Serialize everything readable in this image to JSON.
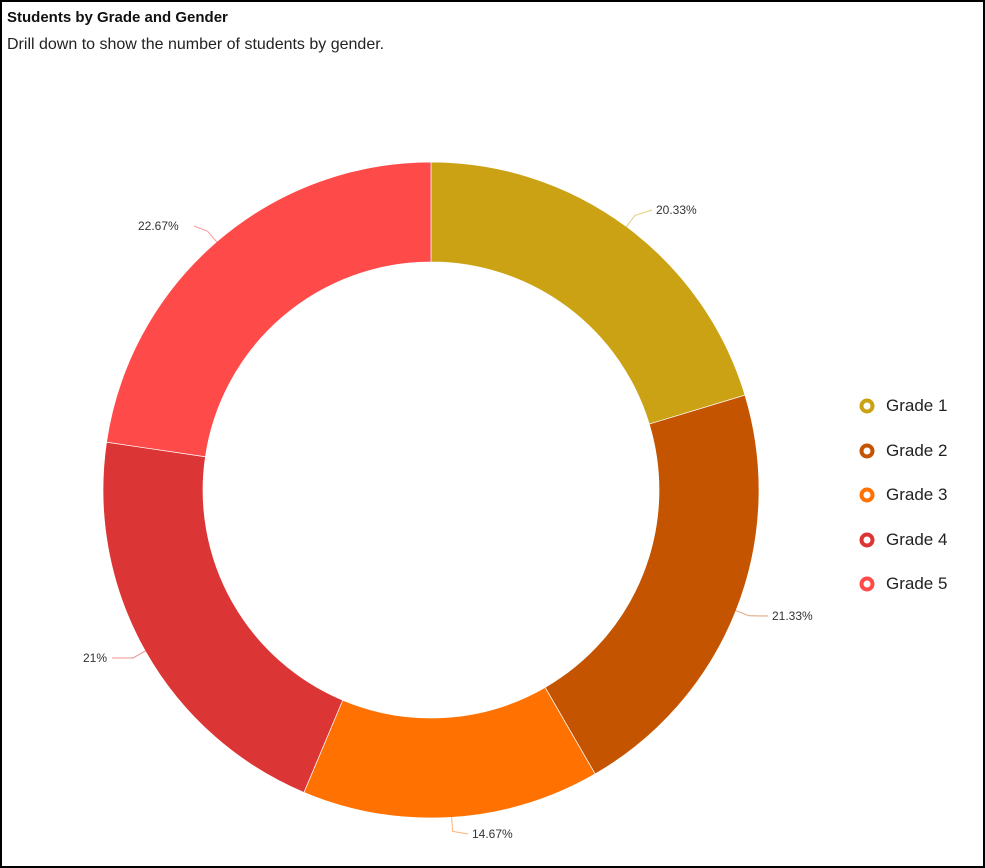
{
  "header": {
    "title": "Students by Grade and Gender",
    "subtitle": "Drill down to show the number of students by gender."
  },
  "legend": {
    "items": [
      {
        "label": "Grade 1",
        "color": "#CBA213"
      },
      {
        "label": "Grade 2",
        "color": "#C45400"
      },
      {
        "label": "Grade 3",
        "color": "#FF7100"
      },
      {
        "label": "Grade 4",
        "color": "#DC3535"
      },
      {
        "label": "Grade 5",
        "color": "#FF4A4A"
      }
    ]
  },
  "labels": {
    "grade1": "20.33%",
    "grade2": "21.33%",
    "grade3": "14.67%",
    "grade4": "21%",
    "grade5": "22.67%"
  },
  "chart_data": {
    "type": "pie",
    "subtype": "donut",
    "title": "Students by Grade and Gender",
    "subtitle": "Drill down to show the number of students by gender.",
    "categories": [
      "Grade 1",
      "Grade 2",
      "Grade 3",
      "Grade 4",
      "Grade 5"
    ],
    "values": [
      20.33,
      21.33,
      14.67,
      21,
      22.67
    ],
    "value_labels": [
      "20.33%",
      "21.33%",
      "14.67%",
      "21%",
      "22.67%"
    ],
    "colors": [
      "#CBA213",
      "#C45400",
      "#FF7100",
      "#DC3535",
      "#FF4A4A"
    ],
    "start_angle": "12 o'clock, clockwise",
    "legend_position": "right"
  }
}
